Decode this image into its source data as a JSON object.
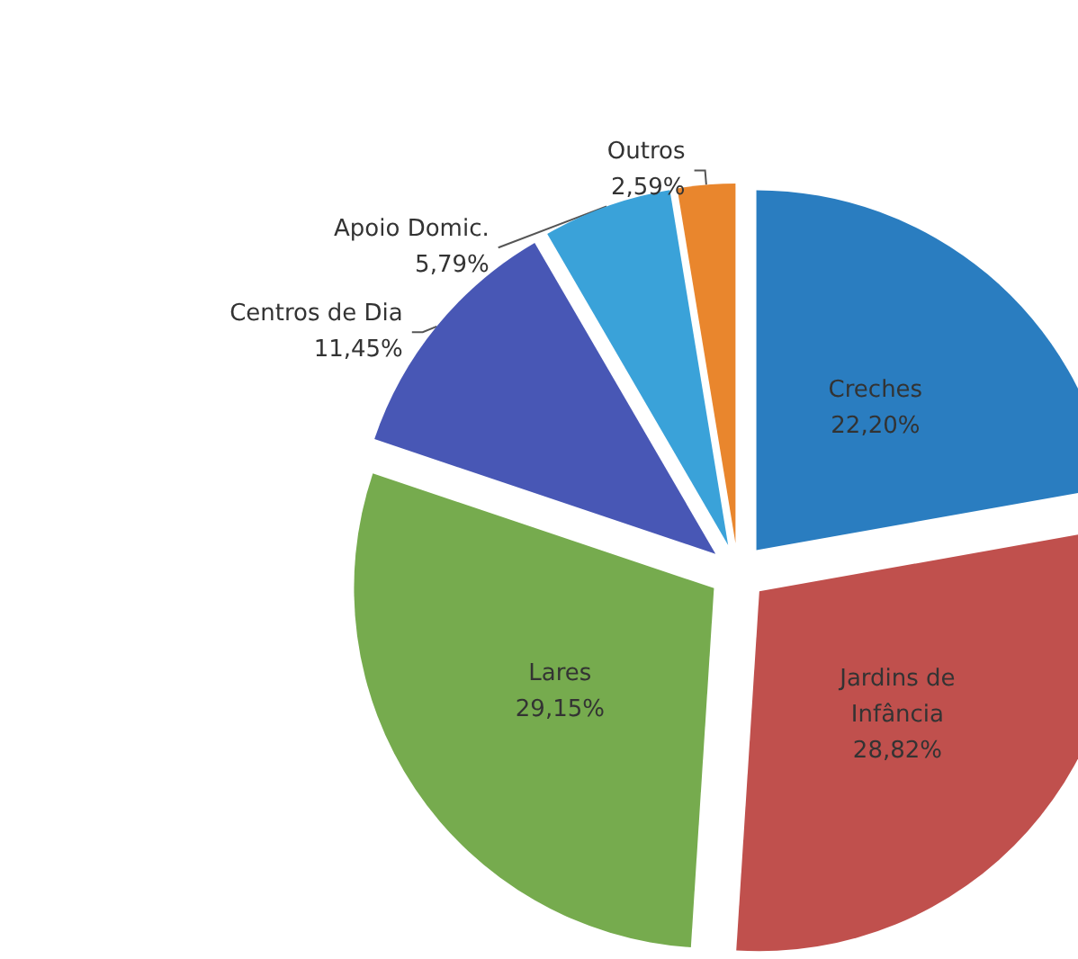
{
  "chart_data": {
    "type": "pie",
    "categories": [
      "Creches",
      "Jardins de\nInfância",
      "Lares",
      "Centros de Dia",
      "Apoio Domic.",
      "Outros"
    ],
    "values": [
      22.2,
      28.82,
      29.15,
      11.45,
      5.79,
      2.59
    ],
    "value_labels": [
      "22,20%",
      "28,82%",
      "29,15%",
      "11,45%",
      "5,79%",
      "2,59%"
    ],
    "colors": [
      "#2a7dc0",
      "#c0504d",
      "#76ab4e",
      "#4857b5",
      "#3aa2d9",
      "#e9862d"
    ],
    "legend": false
  }
}
